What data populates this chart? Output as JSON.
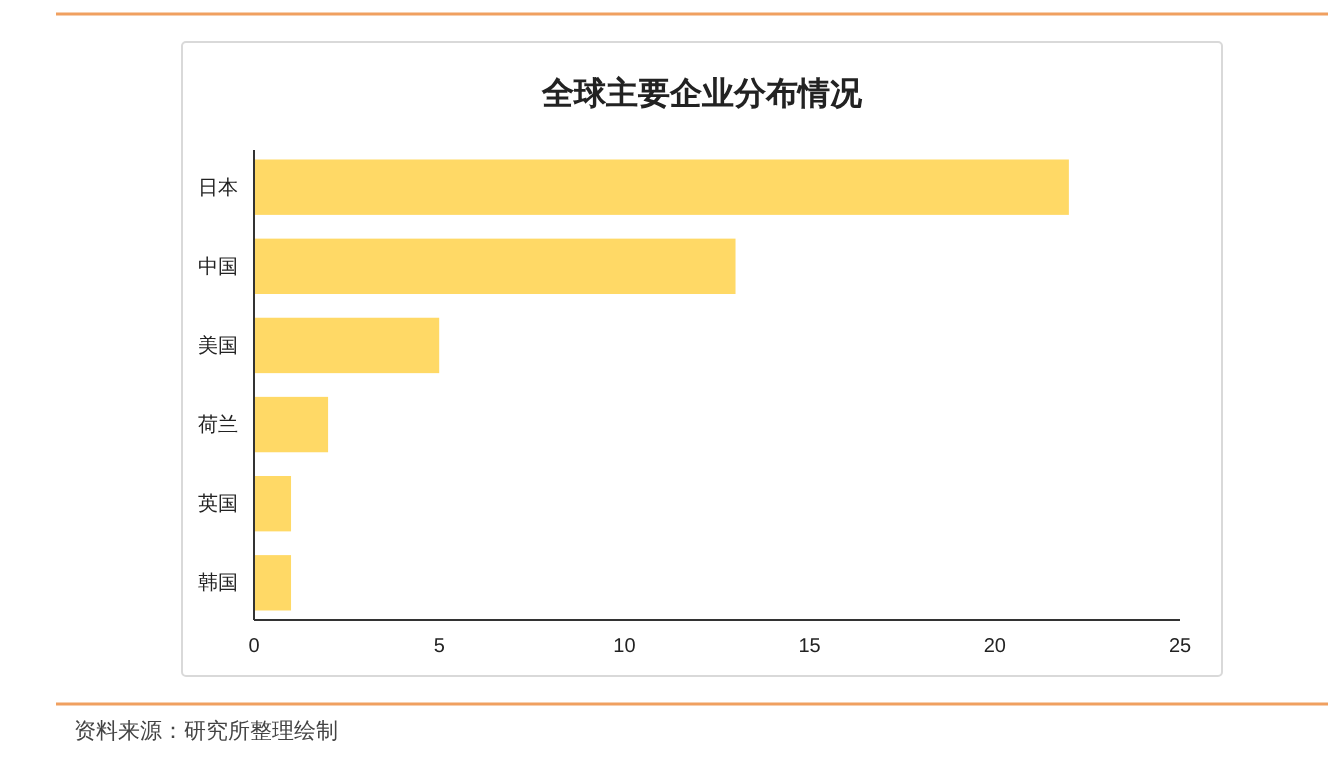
{
  "chart_data": {
    "type": "bar",
    "orientation": "horizontal",
    "title": "全球主要企业分布情况",
    "categories": [
      "日本",
      "中国",
      "美国",
      "荷兰",
      "英国",
      "韩国"
    ],
    "values": [
      22,
      13,
      5,
      2,
      1,
      1
    ],
    "color": "#ffd966",
    "xlim": [
      0,
      25
    ],
    "xticks": [
      0,
      5,
      10,
      15,
      20,
      25
    ],
    "grid": false,
    "annotations": [
      "资料来源：研究所整理绘制"
    ]
  }
}
